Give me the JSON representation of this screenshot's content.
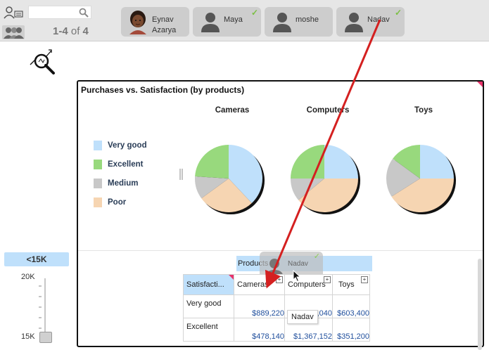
{
  "topbar": {
    "search_placeholder": "",
    "pager": {
      "range": "1-4",
      "of_text": "of",
      "total": "4"
    },
    "users": [
      {
        "first": "Eynav",
        "last": "Azarya",
        "checked": false,
        "photo": true
      },
      {
        "first": "Maya",
        "last": "",
        "checked": true,
        "photo": false
      },
      {
        "first": "moshe",
        "last": "",
        "checked": false,
        "photo": false
      },
      {
        "first": "Nadav",
        "last": "",
        "checked": true,
        "photo": false
      }
    ]
  },
  "chart_data": [
    {
      "type": "pie",
      "title": "Purchases vs. Satisfaction (by products)",
      "legend": [
        "Very good",
        "Excellent",
        "Medium",
        "Poor"
      ],
      "colors": [
        "#bfe0fb",
        "#98d97d",
        "#c8c8c8",
        "#f6d5b2"
      ],
      "charts": [
        {
          "category": "Cameras",
          "values": [
            0.38,
            0.24,
            0.11,
            0.27
          ]
        },
        {
          "category": "Computers",
          "values": [
            0.25,
            0.25,
            0.11,
            0.39
          ]
        },
        {
          "category": "Toys",
          "values": [
            0.25,
            0.15,
            0.19,
            0.41
          ]
        }
      ]
    }
  ],
  "table": {
    "axis_label": "Products",
    "corner_label": "Satisfacti...",
    "columns": [
      "Cameras",
      "Computers",
      "Toys"
    ],
    "rows": [
      {
        "label": "Very good",
        "values": [
          "$889,220",
          "$877,040",
          "$603,400"
        ]
      },
      {
        "label": "Excellent",
        "values": [
          "$478,140",
          "$1,367,152",
          "$351,200"
        ]
      }
    ]
  },
  "drag": {
    "user": "Nadav",
    "tooltip": "Nadav"
  },
  "filter": {
    "bucket": "<15K",
    "top_label": "20K",
    "bottom_label": "15K"
  }
}
